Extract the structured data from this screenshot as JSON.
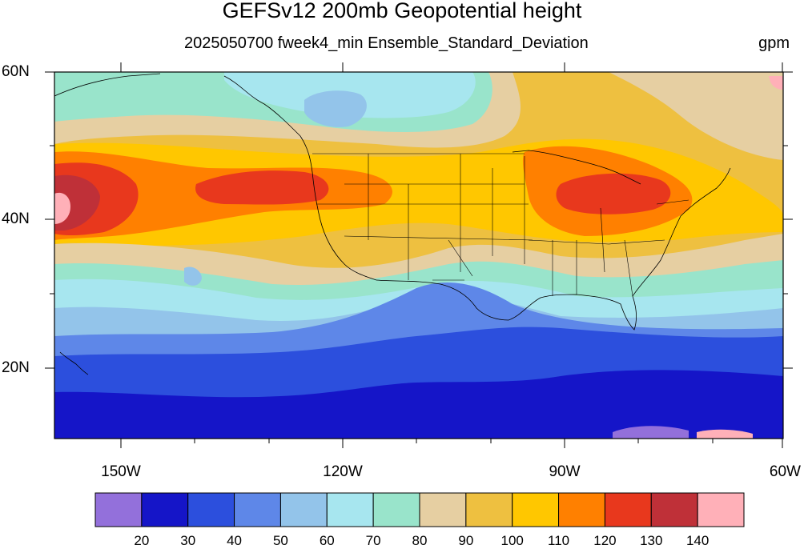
{
  "title": "GEFSv12 200mb Geopotential height",
  "subtitle": "2025050700 fweek4_min Ensemble_Standard_Deviation",
  "units": "gpm",
  "latitude_labels": [
    "60N",
    "40N",
    "20N"
  ],
  "longitude_labels": [
    "150W",
    "120W",
    "90W",
    "60W"
  ],
  "colorbar": {
    "colors": [
      "#9370DB",
      "#1515C8",
      "#2C4FDD",
      "#5E87E8",
      "#93C4EA",
      "#A7E6EF",
      "#99E4CB",
      "#E6CFA2",
      "#EEC040",
      "#FFC700",
      "#FF8000",
      "#E8381D",
      "#BF3038",
      "#FFB0B8"
    ],
    "labels": [
      "20",
      "30",
      "40",
      "50",
      "60",
      "70",
      "80",
      "90",
      "100",
      "110",
      "120",
      "130",
      "140"
    ]
  }
}
